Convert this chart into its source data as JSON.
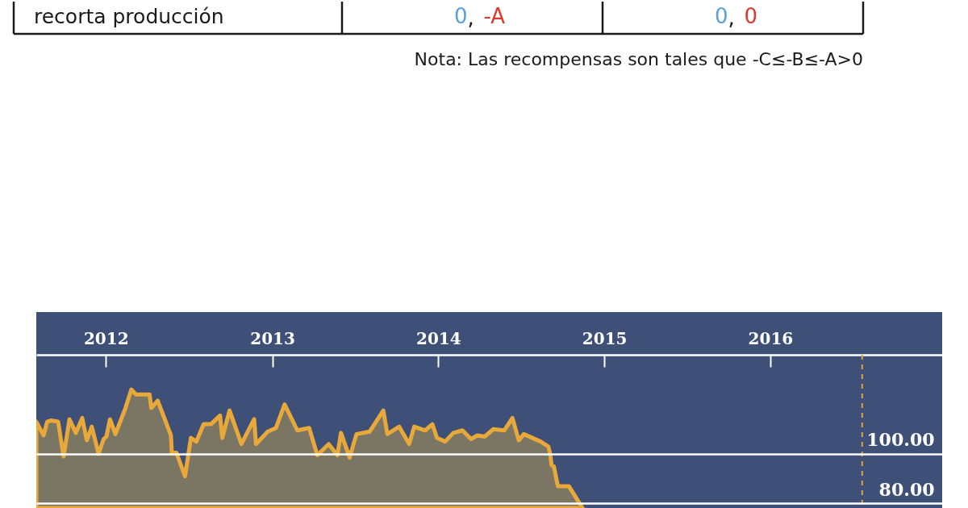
{
  "chart_data": [
    {
      "type": "other",
      "y_categories": [
        "recorta producción"
      ],
      "cell_labels": [
        [
          "0, -A",
          "0, 0"
        ]
      ],
      "colors": [
        "#5b9fdc",
        "#d83a2e"
      ],
      "annotations": [
        "Nota: Las recompensas son tales que -C≤-B≤-A>0"
      ]
    },
    {
      "type": "area",
      "x": [
        "2011-08-01",
        "2011-08-17",
        "2011-08-25",
        "2011-09-03",
        "2011-09-18",
        "2011-09-30",
        "2011-10-13",
        "2011-10-27",
        "2011-11-10",
        "2011-11-20",
        "2011-12-01",
        "2011-12-16",
        "2011-12-27",
        "2012-01-02",
        "2012-01-10",
        "2012-01-22",
        "2012-02-13",
        "2012-02-26",
        "2012-03-07",
        "2012-04-06",
        "2012-04-10",
        "2012-04-24",
        "2012-05-23",
        "2012-05-25",
        "2012-06-04",
        "2012-06-23",
        "2012-07-06",
        "2012-07-18",
        "2012-08-03",
        "2012-08-19",
        "2012-09-08",
        "2012-09-13",
        "2012-09-29",
        "2012-10-25",
        "2012-11-22",
        "2012-11-26",
        "2012-12-22",
        "2013-01-09",
        "2013-01-28",
        "2013-02-25",
        "2013-03-23",
        "2013-04-10",
        "2013-05-05",
        "2013-05-24",
        "2013-06-01",
        "2013-06-20",
        "2013-07-05",
        "2013-08-03",
        "2013-09-02",
        "2013-09-11",
        "2013-10-07",
        "2013-10-29",
        "2013-11-09",
        "2013-12-03",
        "2013-12-19",
        "2013-12-29",
        "2014-01-16",
        "2014-02-03",
        "2014-02-23",
        "2014-03-14",
        "2014-03-28",
        "2014-04-13",
        "2014-05-02",
        "2014-05-26",
        "2014-06-13",
        "2014-06-27",
        "2014-07-08",
        "2014-08-14",
        "2014-08-31",
        "2014-09-04",
        "2014-09-07",
        "2014-09-12",
        "2014-09-21",
        "2014-10-15",
        "2014-11-14"
      ],
      "series": [
        {
          "type": "area",
          "color": "#7b7563",
          "values": [
            113,
            107.5,
            113,
            113.5,
            113,
            99,
            114,
            108.5,
            114.5,
            105.5,
            111,
            100,
            106,
            107,
            114,
            108,
            118.5,
            126,
            124,
            124,
            118.5,
            121.5,
            107.5,
            100.5,
            100.5,
            91,
            106.5,
            105,
            112,
            112,
            115.5,
            106.5,
            117.5,
            104,
            114,
            104,
            109,
            110.5,
            120,
            109.5,
            110.5,
            99.5,
            104,
            99.5,
            108.5,
            98.5,
            108,
            109,
            117.5,
            108,
            111,
            104,
            111,
            109.5,
            112,
            106.5,
            105,
            108.5,
            109.5,
            106,
            107.5,
            107,
            110,
            109.5,
            114.5,
            105.5,
            108,
            105,
            103,
            100,
            95.5,
            95,
            87,
            87,
            78.2
          ]
        }
      ],
      "xlim": [
        "2011-08-01",
        "2017-01-13"
      ],
      "xticks": [
        "2012",
        "2013",
        "2014",
        "2015",
        "2016"
      ],
      "ylim": [
        78.2,
        140
      ],
      "yticks": [
        {
          "value": 100,
          "label": "100.00"
        },
        {
          "value": 80,
          "label": "80.00"
        }
      ],
      "grid": "y",
      "ref_lines": [
        {
          "axis": "x",
          "value": "2016-07-21",
          "color": "#d9a63e",
          "line_style": "dashed"
        }
      ]
    }
  ]
}
